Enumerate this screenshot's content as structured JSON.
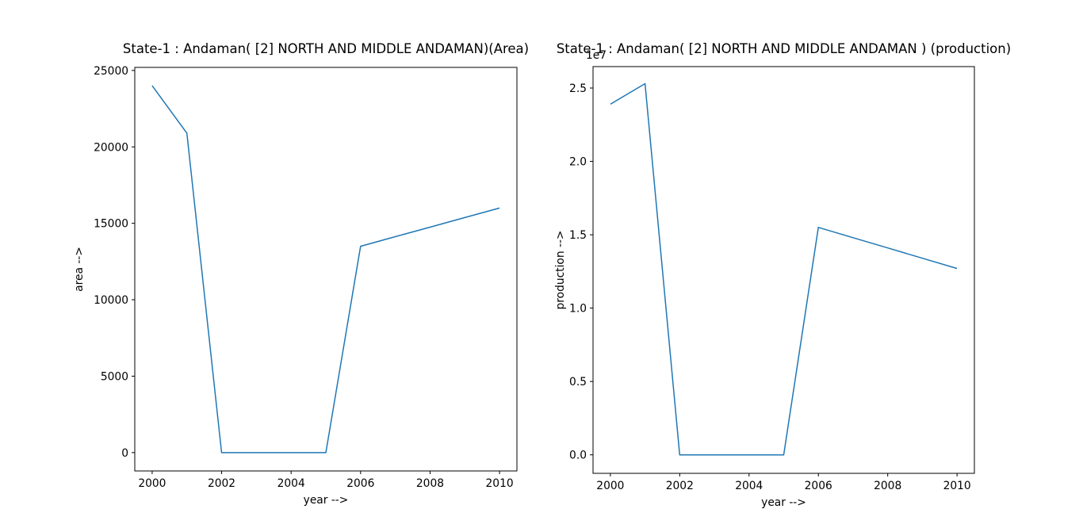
{
  "figure": {
    "background_color": "#ffffff",
    "text_color": "#000000",
    "accent_line_color": "#1f77b4"
  },
  "chart_data": [
    {
      "type": "line",
      "title": "State-1 : Andaman( [2] NORTH AND MIDDLE ANDAMAN)(Area)",
      "xlabel": "year -->",
      "ylabel": "area -->",
      "x": [
        2000,
        2001,
        2002,
        2003,
        2004,
        2005,
        2006,
        2007,
        2008,
        2009,
        2010
      ],
      "y": [
        24000,
        20900,
        0,
        0,
        0,
        0,
        13500,
        14125,
        14750,
        15375,
        16000
      ],
      "xlim": [
        1999.5,
        2010.5
      ],
      "ylim": [
        -1200,
        25200
      ],
      "xticks": [
        2000,
        2002,
        2004,
        2006,
        2008,
        2010
      ],
      "xtick_labels": [
        "2000",
        "2002",
        "2004",
        "2006",
        "2008",
        "2010"
      ],
      "yticks": [
        0,
        5000,
        10000,
        15000,
        20000,
        25000
      ],
      "ytick_labels": [
        "0",
        "5000",
        "10000",
        "15000",
        "20000",
        "25000"
      ],
      "offset_text": "",
      "grid": false,
      "legend_position": "none",
      "line_color": "#1f77b4"
    },
    {
      "type": "line",
      "title": "State-1 : Andaman( [2] NORTH AND MIDDLE ANDAMAN ) (production)",
      "xlabel": "year -->",
      "ylabel": "production -->",
      "x": [
        2000,
        2001,
        2002,
        2003,
        2004,
        2005,
        2006,
        2007,
        2008,
        2009,
        2010
      ],
      "y": [
        23900000,
        25300000,
        0,
        0,
        0,
        0,
        15500000,
        14800000,
        14100000,
        13400000,
        12700000
      ],
      "xlim": [
        1999.5,
        2010.5
      ],
      "ylim": [
        -1260000,
        26460000
      ],
      "xticks": [
        2000,
        2002,
        2004,
        2006,
        2008,
        2010
      ],
      "xtick_labels": [
        "2000",
        "2002",
        "2004",
        "2006",
        "2008",
        "2010"
      ],
      "yticks": [
        0,
        5000000,
        10000000,
        15000000,
        20000000,
        25000000
      ],
      "ytick_labels": [
        "0.0",
        "0.5",
        "1.0",
        "1.5",
        "2.0",
        "2.5"
      ],
      "offset_text": "1e7",
      "grid": false,
      "legend_position": "none",
      "line_color": "#1f77b4"
    }
  ]
}
